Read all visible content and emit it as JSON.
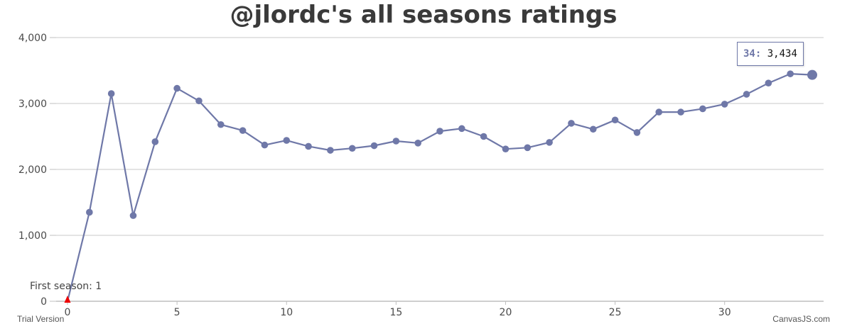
{
  "chart_data": {
    "type": "line",
    "title": "@jlordc's all seasons ratings",
    "xlabel": "",
    "ylabel": "",
    "xlim": [
      0,
      34
    ],
    "ylim": [
      0,
      4000
    ],
    "x_ticks": [
      "0",
      "5",
      "10",
      "15",
      "20",
      "25",
      "30"
    ],
    "y_ticks": [
      "0",
      "1,000",
      "2,000",
      "3,000",
      "4,000"
    ],
    "grid": true,
    "series": [
      {
        "color": "#6f78a8",
        "x": [
          0,
          1,
          2,
          3,
          4,
          5,
          6,
          7,
          8,
          9,
          10,
          11,
          12,
          13,
          14,
          15,
          16,
          17,
          18,
          19,
          20,
          21,
          22,
          23,
          24,
          25,
          26,
          27,
          28,
          29,
          30,
          31,
          32,
          33,
          34
        ],
        "y": [
          0,
          1350,
          3150,
          1300,
          2420,
          3230,
          3040,
          2680,
          2590,
          2370,
          2440,
          2350,
          2290,
          2320,
          2360,
          2430,
          2400,
          2580,
          2620,
          2500,
          2310,
          2330,
          2410,
          2700,
          2610,
          2750,
          2560,
          2870,
          2870,
          2920,
          2990,
          3140,
          3310,
          3450,
          3434
        ]
      }
    ],
    "annotation": {
      "text": "First season: 1",
      "x": 0,
      "y": 0,
      "marker_color": "#ee0000"
    },
    "tooltip": {
      "key": "34:",
      "value": "3,434"
    }
  },
  "footer": {
    "trial": "Trial Version",
    "credit": "CanvasJS.com"
  }
}
